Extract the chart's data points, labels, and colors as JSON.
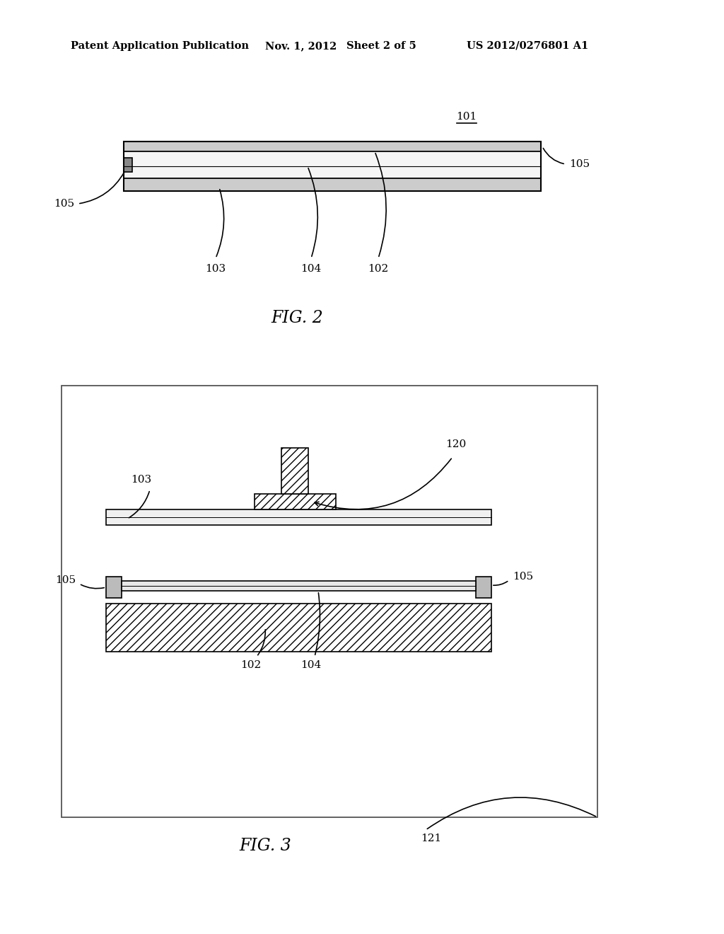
{
  "bg_color": "#ffffff",
  "header_text": "Patent Application Publication",
  "header_date": "Nov. 1, 2012",
  "header_sheet": "Sheet 2 of 5",
  "header_patent": "US 2012/0276801 A1",
  "fig2_label": "FIG. 2",
  "fig3_label": "FIG. 3",
  "label_101": "101",
  "label_102": "102",
  "label_103": "103",
  "label_104": "104",
  "label_105": "105",
  "label_120": "120",
  "label_121": "121",
  "hatch_pattern": "///",
  "line_color": "#000000"
}
